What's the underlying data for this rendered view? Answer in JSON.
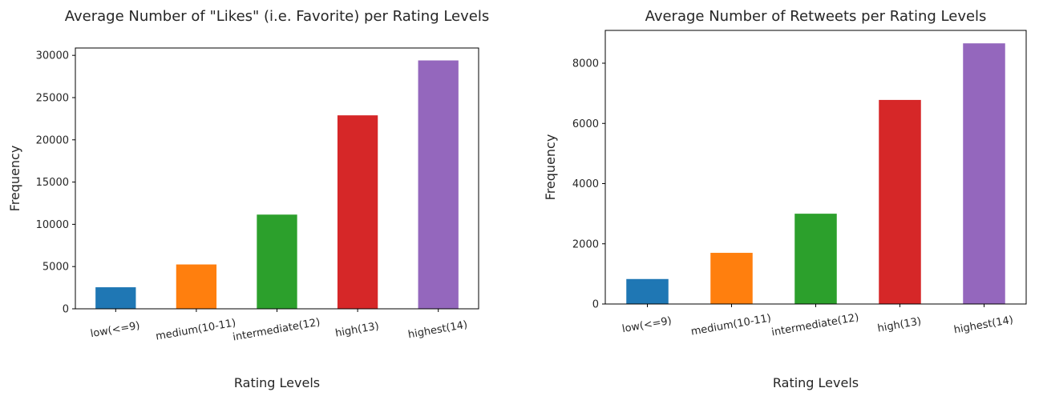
{
  "chart_data": [
    {
      "type": "bar",
      "title": "Average Number of \"Likes\" (i.e. Favorite) per Rating Levels",
      "xlabel": "Rating Levels",
      "ylabel": "Frequency",
      "categories": [
        "low(<=9)",
        "medium(10-11)",
        "intermediate(12)",
        "high(13)",
        "highest(14)"
      ],
      "values": [
        2550,
        5250,
        11150,
        22900,
        29400
      ],
      "colors": [
        "#1f77b4",
        "#ff7f0e",
        "#2ca02c",
        "#d62728",
        "#9467bd"
      ],
      "ylim": [
        0,
        30870
      ],
      "yticks": [
        0,
        5000,
        10000,
        15000,
        20000,
        25000,
        30000
      ],
      "ytick_labels": [
        "0",
        "5000",
        "10000",
        "15000",
        "20000",
        "25000",
        "30000"
      ],
      "grid": false,
      "legend": "none"
    },
    {
      "type": "bar",
      "title": "Average Number of Retweets per Rating Levels",
      "xlabel": "Rating Levels",
      "ylabel": "Frequency",
      "categories": [
        "low(<=9)",
        "medium(10-11)",
        "intermediate(12)",
        "high(13)",
        "highest(14)"
      ],
      "values": [
        830,
        1700,
        3000,
        6780,
        8660
      ],
      "colors": [
        "#1f77b4",
        "#ff7f0e",
        "#2ca02c",
        "#d62728",
        "#9467bd"
      ],
      "ylim": [
        0,
        9090
      ],
      "yticks": [
        0,
        2000,
        4000,
        6000,
        8000
      ],
      "ytick_labels": [
        "0",
        "2000",
        "4000",
        "6000",
        "8000"
      ],
      "grid": false,
      "legend": "none"
    }
  ]
}
